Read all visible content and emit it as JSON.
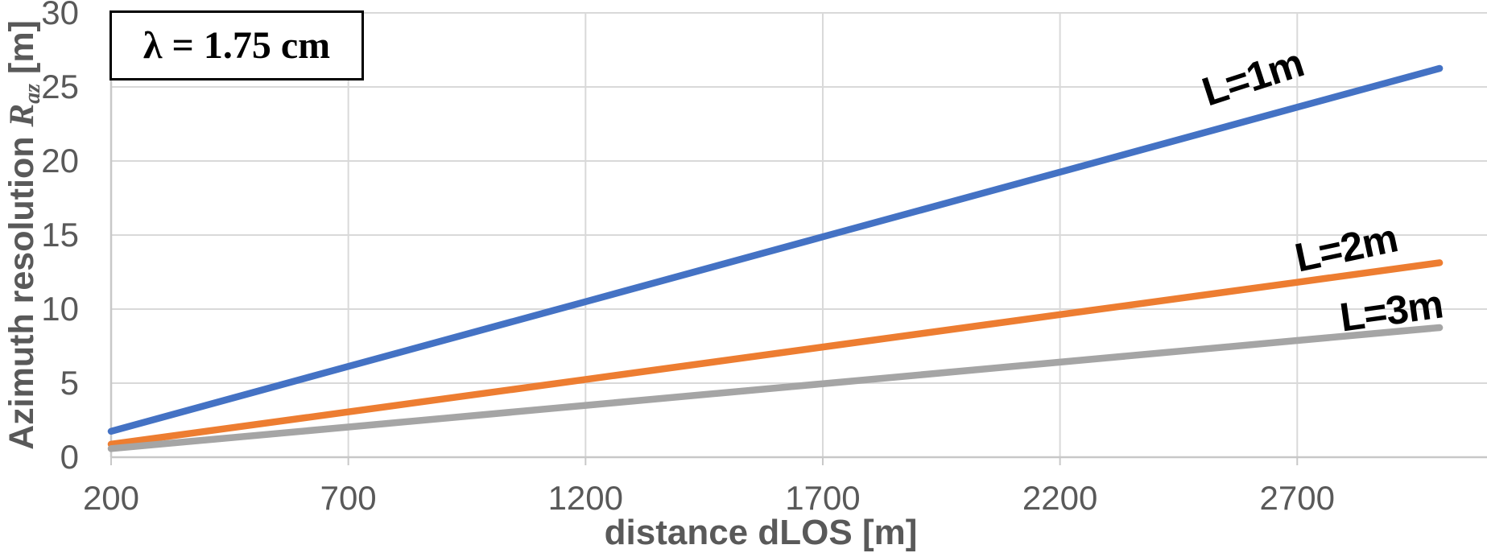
{
  "chart_data": {
    "type": "line",
    "title": "",
    "annotation": "λ = 1.75 cm",
    "xlabel": {
      "text": "distance dLOS",
      "unit": "[m]"
    },
    "ylabel": {
      "prefix": "Azimuth resolution",
      "symbol": "R",
      "subscript": "az",
      "unit": "[m]"
    },
    "xlim": [
      200,
      3100
    ],
    "ylim": [
      0,
      30
    ],
    "x_ticks": [
      200,
      700,
      1200,
      1700,
      2200,
      2700
    ],
    "y_ticks": [
      0,
      5,
      10,
      15,
      20,
      25,
      30
    ],
    "grid": true,
    "legend_position": "inline-labels",
    "x": [
      200,
      700,
      1200,
      1700,
      2200,
      2700,
      3000
    ],
    "series": [
      {
        "label": "L=1m",
        "color": "#4472C4",
        "values": [
          1.75,
          6.13,
          10.5,
          14.88,
          19.25,
          23.63,
          26.25
        ]
      },
      {
        "label": "L=2m",
        "color": "#ED7D31",
        "values": [
          0.88,
          3.06,
          5.25,
          7.44,
          9.63,
          11.81,
          13.13
        ]
      },
      {
        "label": "L=3m",
        "color": "#A5A5A5",
        "values": [
          0.58,
          2.04,
          3.5,
          4.96,
          6.42,
          7.88,
          8.75
        ]
      }
    ],
    "colors": {
      "gridline": "#D9D9D9",
      "axis_line": "#C8C8C8",
      "tick_text": "#595959",
      "axis_title_text": "#595959",
      "annotation_text": "#000000",
      "series_label_text": "#000000",
      "background": "#FFFFFF"
    }
  }
}
